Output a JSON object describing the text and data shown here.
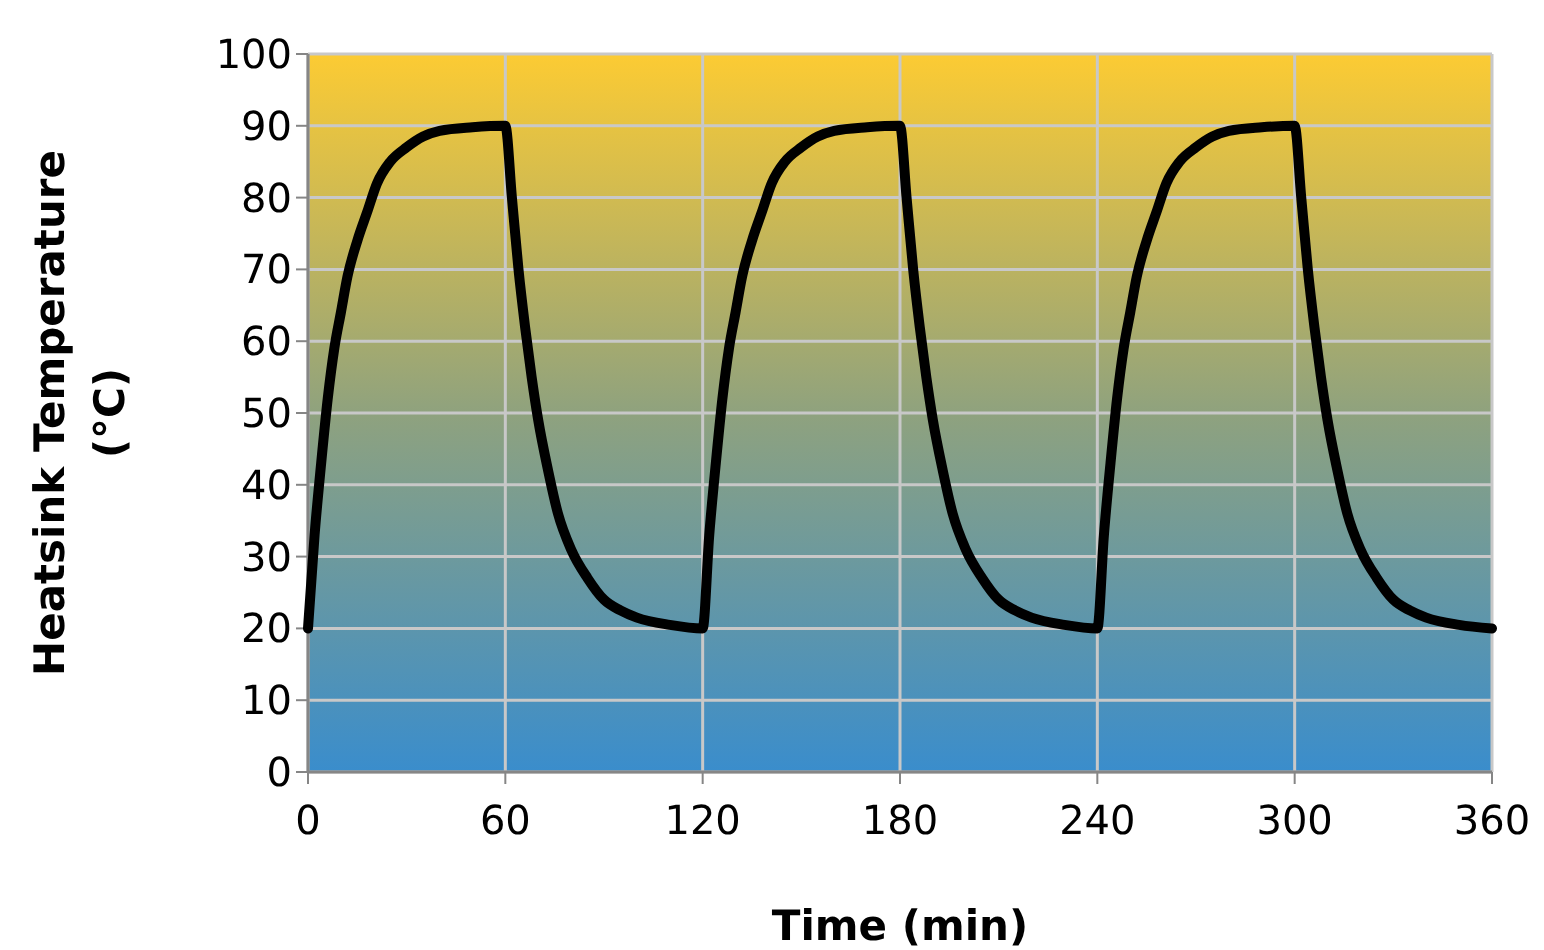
{
  "chart_data": {
    "type": "line",
    "xlabel": "Time (min)",
    "ylabel": "Heatsink Temperature (°C)",
    "x": [
      0,
      2,
      4,
      6,
      8,
      10,
      12,
      15,
      18,
      21,
      25,
      30,
      35,
      40,
      50,
      60,
      62,
      64,
      66,
      68,
      70,
      73,
      76,
      80,
      85,
      90,
      95,
      100,
      110,
      120,
      122,
      124,
      126,
      128,
      130,
      132,
      135,
      138,
      141,
      145,
      150,
      155,
      160,
      170,
      180,
      182,
      184,
      186,
      188,
      190,
      193,
      196,
      200,
      205,
      210,
      215,
      220,
      230,
      240,
      242,
      244,
      246,
      248,
      250,
      252,
      255,
      258,
      261,
      265,
      270,
      275,
      280,
      290,
      300,
      302,
      304,
      306,
      308,
      310,
      313,
      316,
      320,
      325,
      330,
      335,
      340,
      350,
      360
    ],
    "series": [
      {
        "color": "#000000",
        "values": [
          20,
          33,
          43,
          52,
          59,
          64,
          69,
          74,
          78,
          82,
          85,
          87,
          88.5,
          89.3,
          89.8,
          90,
          80,
          70,
          62,
          55,
          49,
          42,
          36,
          31,
          27,
          24,
          22.5,
          21.5,
          20.5,
          20,
          33,
          43,
          52,
          59,
          64,
          69,
          74,
          78,
          82,
          85,
          87,
          88.5,
          89.3,
          89.8,
          90,
          80,
          70,
          62,
          55,
          49,
          42,
          36,
          31,
          27,
          24,
          22.5,
          21.5,
          20.5,
          20,
          33,
          43,
          52,
          59,
          64,
          69,
          74,
          78,
          82,
          85,
          87,
          88.5,
          89.3,
          89.8,
          90,
          80,
          70,
          62,
          55,
          49,
          42,
          36,
          31,
          27,
          24,
          22.5,
          21.5,
          20.5,
          20
        ]
      }
    ],
    "xlim": [
      0,
      360
    ],
    "xticks": [
      0,
      60,
      120,
      180,
      240,
      300,
      360
    ],
    "ylim": [
      0,
      100
    ],
    "yticks": [
      0,
      10,
      20,
      30,
      40,
      50,
      60,
      70,
      80,
      90,
      100
    ],
    "grid": true
  }
}
